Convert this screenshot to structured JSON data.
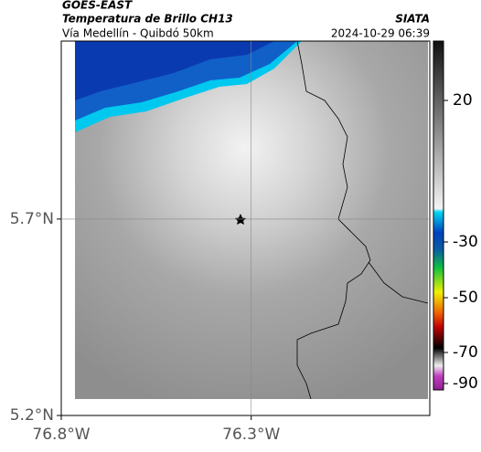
{
  "header": {
    "source": "GOES-EAST",
    "title": "Temperatura de Brillo CH13",
    "subtitle": "Vía Medellín - Quibdó 50km",
    "agency": "SIATA",
    "timestamp": "2024-10-29 06:39"
  },
  "axes": {
    "xlim": [
      -76.8,
      -75.83
    ],
    "ylim": [
      5.2,
      6.153
    ],
    "xticks": [
      {
        "value": -76.8,
        "label": "76.8°W"
      },
      {
        "value": -76.3,
        "label": "76.3°W"
      }
    ],
    "yticks": [
      {
        "value": 5.7,
        "label": "5.7°N"
      },
      {
        "value": 5.2,
        "label": "5.2°N"
      }
    ]
  },
  "colorbar": {
    "ticks": [
      20,
      -30,
      -50,
      -70,
      -90
    ]
  }
}
